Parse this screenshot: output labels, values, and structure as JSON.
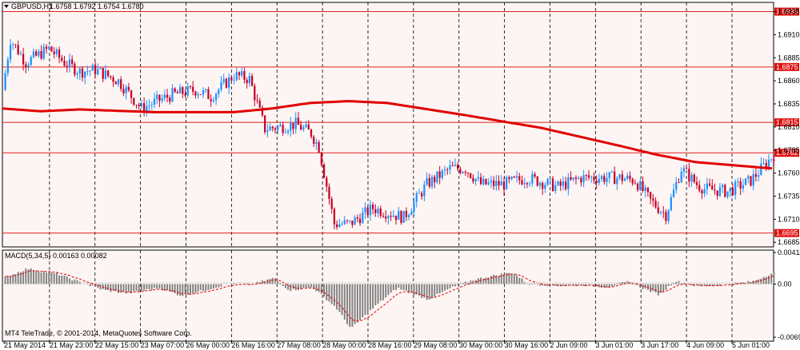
{
  "main_header": {
    "symbol": "GBPUSD,H1",
    "ohlc": "1.6758 1.6792 1.6754 1.6780"
  },
  "sub_header": {
    "indicator": "MACD(5,34,5) 0.00163 0.00082"
  },
  "copyright": "MT4 TeleTrade, © 2001-2014, MetaQuotes Software Corp.",
  "colors": {
    "background": "#ffffff",
    "plot_bg": "#fdf5f3",
    "grid": "#000000",
    "bull": "#1e90ff",
    "bear": "#c8002a",
    "ma_line": "#e00000",
    "hline": "#e02020",
    "hline_tag": "#e01010",
    "macd_hist": "#808080",
    "macd_signal": "#e00000"
  },
  "icons": {
    "header_arrow": "triangle-down-icon"
  },
  "chart_data": [
    {
      "type": "candlestick",
      "symbol": "GBPUSD",
      "timeframe": "H1",
      "ylim": [
        1.668,
        1.6945
      ],
      "y_ticks": [
        "1.6935",
        "1.6910",
        "1.6885",
        "1.6860",
        "1.6835",
        "1.6810",
        "1.6785",
        "1.6760",
        "1.6735",
        "1.6710",
        "1.6685"
      ],
      "x_ticks": [
        "21 May 2014",
        "21 May 23:00",
        "22 May 15:00",
        "23 May 07:00",
        "26 May 00:00",
        "26 May 16:00",
        "27 May 08:00",
        "28 May 00:00",
        "28 May 16:00",
        "29 May 08:00",
        "30 May 00:00",
        "30 May 16:00",
        "2 Jun 09:00",
        "3 Jun 01:00",
        "3 Jun 17:00",
        "4 Jun 09:00",
        "5 Jun 01:00"
      ],
      "horizontal_lines": [
        "1.6935",
        "1.6875",
        "1.6815",
        "1.6782",
        "1.6695"
      ],
      "moving_average": {
        "x_frac": [
          0,
          0.05,
          0.1,
          0.2,
          0.3,
          0.35,
          0.4,
          0.45,
          0.5,
          0.6,
          0.7,
          0.8,
          0.85,
          0.9,
          1.0
        ],
        "values": [
          1.683,
          1.6827,
          1.6829,
          1.6826,
          1.6826,
          1.683,
          1.6836,
          1.6838,
          1.6836,
          1.6823,
          1.6809,
          1.679,
          1.678,
          1.6772,
          1.6765
        ]
      },
      "price_anchors": {
        "x_frac": [
          0,
          0.01,
          0.03,
          0.06,
          0.08,
          0.1,
          0.12,
          0.15,
          0.18,
          0.2,
          0.22,
          0.25,
          0.27,
          0.3,
          0.32,
          0.34,
          0.36,
          0.38,
          0.4,
          0.41,
          0.43,
          0.45,
          0.48,
          0.52,
          0.55,
          0.58,
          0.6,
          0.62,
          0.65,
          0.68,
          0.7,
          0.72,
          0.75,
          0.78,
          0.8,
          0.82,
          0.84,
          0.86,
          0.88,
          0.9,
          0.91,
          0.94,
          0.97,
          1.0
        ],
        "values": [
          1.685,
          1.6905,
          1.688,
          1.6895,
          1.688,
          1.687,
          1.6872,
          1.686,
          1.683,
          1.6838,
          1.6845,
          1.685,
          1.6843,
          1.6866,
          1.6862,
          1.6808,
          1.681,
          1.6813,
          1.6803,
          1.6788,
          1.6705,
          1.6705,
          1.6722,
          1.6712,
          1.6748,
          1.6765,
          1.6765,
          1.6748,
          1.6748,
          1.6755,
          1.675,
          1.6745,
          1.6755,
          1.6755,
          1.6755,
          1.6752,
          1.673,
          1.6715,
          1.6765,
          1.6748,
          1.6743,
          1.674,
          1.6752,
          1.678
        ]
      }
    },
    {
      "type": "histogram",
      "indicator": "MACD(5,34,5)",
      "main_value": "0.00163",
      "signal_value": "0.00082",
      "ylim": [
        -0.00692,
        0.00411
      ],
      "y_ticks": [
        "0.00411",
        "0.00",
        "-0.00692"
      ],
      "hist_anchors": {
        "x_frac": [
          0,
          0.03,
          0.07,
          0.1,
          0.13,
          0.16,
          0.2,
          0.23,
          0.26,
          0.29,
          0.32,
          0.35,
          0.37,
          0.4,
          0.43,
          0.45,
          0.48,
          0.51,
          0.55,
          0.58,
          0.61,
          0.64,
          0.66,
          0.68,
          0.72,
          0.75,
          0.78,
          0.81,
          0.83,
          0.85,
          0.87,
          0.9,
          0.93,
          0.97,
          1.0
        ],
        "values": [
          0.0008,
          0.002,
          0.0013,
          0.0002,
          -0.0008,
          -0.0012,
          -0.0005,
          -0.0015,
          -0.0008,
          0.0,
          -0.0001,
          0.0008,
          -0.0008,
          -0.0004,
          -0.003,
          -0.0058,
          -0.003,
          -0.0005,
          -0.002,
          -0.0005,
          0.0006,
          0.0012,
          0.0015,
          0.0,
          -0.0002,
          -0.0001,
          -0.0004,
          0.0003,
          -0.0006,
          -0.0014,
          0.0004,
          -0.0003,
          -0.0001,
          0.0003,
          0.0016
        ]
      }
    }
  ]
}
